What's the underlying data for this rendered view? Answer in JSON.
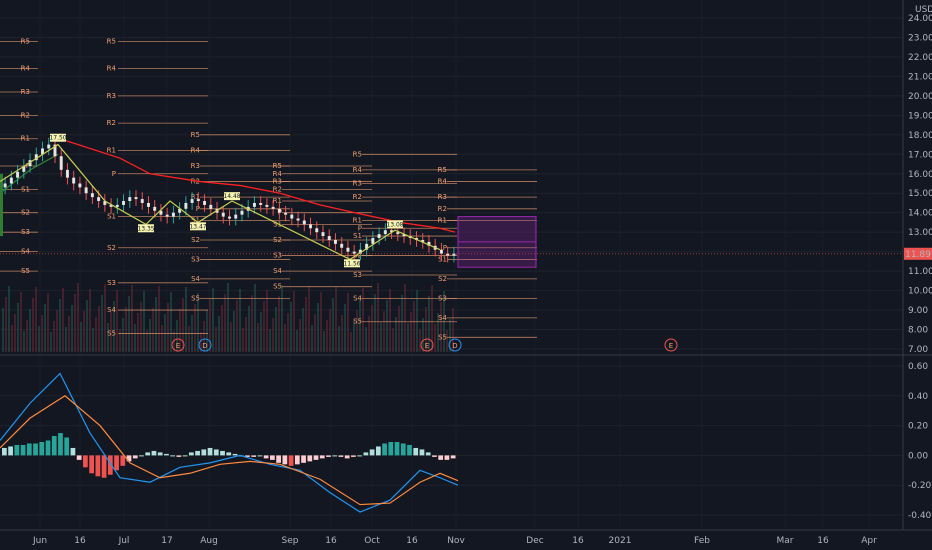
{
  "currency": "USD",
  "last_price": "11.89",
  "price_axis": [
    "24.00",
    "23.00",
    "22.00",
    "21.00",
    "20.00",
    "19.00",
    "18.00",
    "17.00",
    "16.00",
    "15.00",
    "14.00",
    "13.00",
    "12.00",
    "11.00",
    "10.00",
    "9.00",
    "8.00",
    "7.00"
  ],
  "osc_axis": [
    "0.60",
    "0.40",
    "0.20",
    "0.00",
    "-0.20",
    "-0.40"
  ],
  "time_axis": [
    "Jun",
    "16",
    "Jul",
    "17",
    "Aug",
    "Sep",
    "16",
    "Oct",
    "16",
    "Nov",
    "Dec",
    "16",
    "2021",
    "Feb",
    "Mar",
    "16",
    "Apr"
  ],
  "pivot_labels": [
    "R5",
    "R4",
    "R3",
    "R2",
    "R1",
    "P",
    "S1",
    "S2",
    "S3",
    "S4",
    "S5"
  ],
  "event_markers": [
    "E",
    "D",
    "E",
    "D",
    "E"
  ],
  "price_tags": [
    "17.50",
    "13.35",
    "13.47",
    "14.48",
    "11.56",
    "13.08"
  ],
  "colors": {
    "background": "#131722",
    "pivot": "#f0a070",
    "up": "#26a69a",
    "down": "#ef5350",
    "trend": "#ffeb3b",
    "stop_line": "#ff2020",
    "macd": "#2196f3",
    "signal": "#ff8a3d",
    "price_tag": "#ef5350",
    "box": "#9c27b0"
  },
  "chart_data": {
    "type": "candlestick",
    "price_range": [
      7,
      24
    ],
    "oscillator_range": [
      -0.5,
      0.65
    ],
    "closes": [
      15.5,
      15.8,
      16.1,
      16.4,
      16.7,
      17.0,
      17.3,
      17.5,
      16.9,
      16.2,
      15.8,
      15.5,
      15.3,
      15.0,
      14.8,
      14.6,
      14.4,
      14.3,
      14.4,
      14.6,
      14.8,
      14.7,
      14.5,
      14.3,
      14.1,
      13.9,
      13.8,
      14.0,
      14.2,
      14.5,
      14.7,
      14.6,
      14.4,
      14.2,
      14.0,
      13.8,
      13.7,
      13.9,
      14.1,
      14.3,
      14.5,
      14.4,
      14.3,
      14.2,
      14.0,
      13.9,
      13.7,
      13.6,
      13.4,
      13.2,
      13.0,
      12.8,
      12.6,
      12.4,
      12.2,
      12.0,
      11.9,
      12.1,
      12.4,
      12.7,
      12.9,
      13.1,
      13.0,
      12.9,
      12.8,
      12.7,
      12.6,
      12.5,
      12.3,
      12.1,
      11.9,
      11.8,
      11.9
    ],
    "histogram": [
      0.05,
      0.06,
      0.07,
      0.07,
      0.08,
      0.08,
      0.09,
      0.1,
      0.13,
      0.15,
      0.12,
      0.05,
      -0.03,
      -0.08,
      -0.12,
      -0.14,
      -0.15,
      -0.13,
      -0.1,
      -0.07,
      -0.04,
      -0.02,
      0.0,
      0.02,
      0.03,
      0.02,
      0.01,
      0.0,
      -0.01,
      0.0,
      0.02,
      0.03,
      0.04,
      0.05,
      0.04,
      0.03,
      0.02,
      0.01,
      0.0,
      -0.01,
      -0.01,
      0.0,
      -0.02,
      -0.03,
      -0.05,
      -0.06,
      -0.07,
      -0.06,
      -0.05,
      -0.04,
      -0.03,
      -0.02,
      -0.01,
      0.0,
      -0.01,
      -0.02,
      -0.01,
      0.0,
      0.02,
      0.04,
      0.06,
      0.08,
      0.09,
      0.09,
      0.08,
      0.07,
      0.05,
      0.04,
      0.02,
      -0.01,
      -0.03,
      -0.03,
      -0.02
    ]
  }
}
